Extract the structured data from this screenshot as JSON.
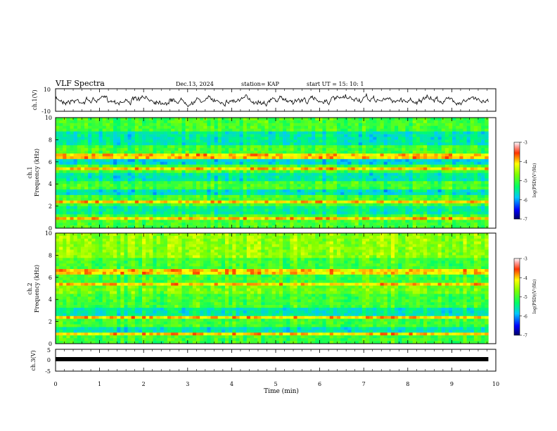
{
  "header": {
    "title": "VLF Spectra",
    "date": "Dec.13, 2024",
    "station": "station= KAP",
    "start_ut": "start  UT =   15: 10: 1"
  },
  "chart_data": [
    {
      "type": "line",
      "name": "ch1-waveform",
      "ylabel": "ch.1(V)",
      "ylim": [
        -10,
        10
      ],
      "yticks": [
        "10",
        "-10"
      ],
      "xlim": [
        0,
        10
      ]
    },
    {
      "type": "heatmap",
      "name": "ch1-spectrogram",
      "ylabel_top": "ch.1",
      "ylabel": "Frequency  (kHz)",
      "ylim": [
        0,
        10
      ],
      "yticks": [
        "0",
        "2",
        "4",
        "6",
        "8",
        "10"
      ],
      "xlim": [
        0,
        10
      ],
      "data_end_min": 9.83,
      "colorbar": {
        "label": "log(PSD)(V²/Hz)",
        "range": [
          -7,
          -3
        ],
        "ticks": [
          "-3",
          "-4",
          "-5",
          "-6",
          "-7"
        ]
      }
    },
    {
      "type": "heatmap",
      "name": "ch2-spectrogram",
      "ylabel_top": "ch.2",
      "ylabel": "Frequency  (kHz)",
      "ylim": [
        0,
        10
      ],
      "yticks": [
        "0",
        "2",
        "4",
        "6",
        "8",
        "10"
      ],
      "xlim": [
        0,
        10
      ],
      "data_end_min": 9.83,
      "colorbar": {
        "label": "log(PSD)(V²/Hz)",
        "range": [
          -7,
          -3
        ],
        "ticks": [
          "-3",
          "-4",
          "-5",
          "-6",
          "-7"
        ]
      }
    },
    {
      "type": "line",
      "name": "ch3-waveform",
      "ylabel": "ch.3(V)",
      "ylim": [
        -5,
        5
      ],
      "yticks": [
        "5",
        "0",
        "-5"
      ],
      "xlim": [
        0,
        10
      ],
      "xlabel": "Time  (min)",
      "xticks": [
        "0",
        "1",
        "2",
        "3",
        "4",
        "5",
        "6",
        "7",
        "8",
        "9",
        "10"
      ]
    }
  ]
}
